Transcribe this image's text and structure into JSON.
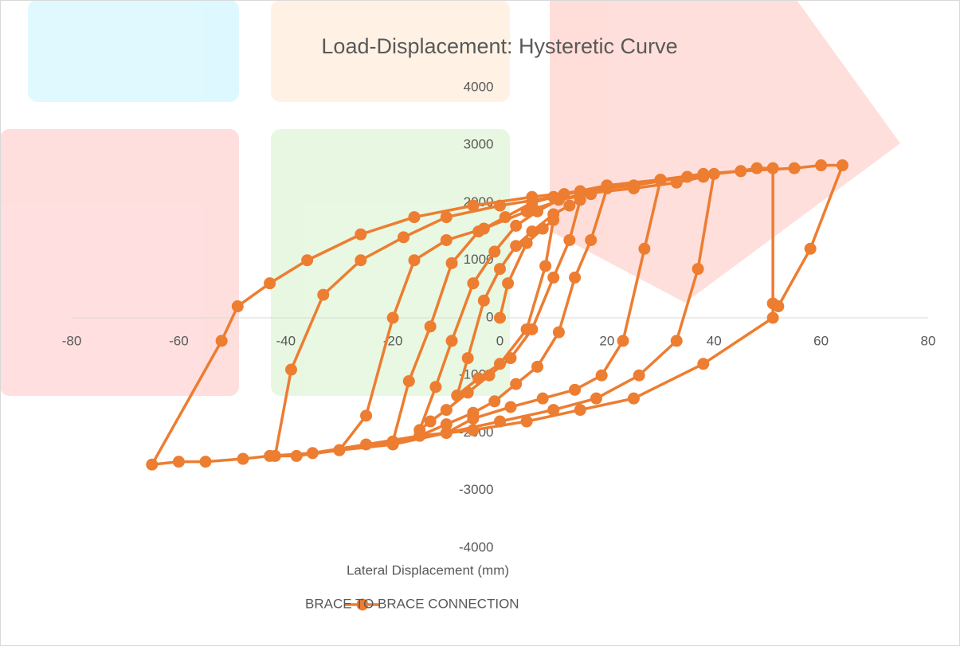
{
  "chart_data": {
    "type": "scatter-line",
    "title": "Load-Displacement: Hysteretic Curve",
    "x_label": "Lateral Displacement (mm)",
    "xlim": [
      -80,
      80
    ],
    "xticks": [
      -80,
      -60,
      -40,
      -20,
      0,
      20,
      40,
      60,
      80
    ],
    "ylim": [
      -4000,
      4000
    ],
    "yticks": [
      -4000,
      -3000,
      -2000,
      -1000,
      0,
      1000,
      2000,
      3000,
      4000
    ],
    "grid": false,
    "legend": "bottom",
    "x": [
      0,
      1.5,
      5,
      8,
      10,
      8.5,
      5,
      0,
      -4,
      -8,
      -6,
      -3,
      0,
      3,
      6,
      10,
      13,
      15,
      13,
      10,
      6,
      2,
      -2,
      -6,
      -10,
      -13,
      -15,
      -12,
      -9,
      -5,
      -1,
      3,
      7,
      11,
      17,
      20,
      17,
      14,
      11,
      7,
      3,
      -1,
      -5,
      -10,
      -15,
      -20,
      -17,
      -13,
      -9,
      -4,
      1,
      6,
      12,
      20,
      25,
      30,
      27,
      23,
      19,
      14,
      8,
      2,
      -5,
      -10,
      -20,
      -30,
      -25,
      -20,
      -16,
      -10,
      -3,
      5,
      15,
      25,
      33,
      38,
      40,
      37,
      33,
      26,
      18,
      10,
      0,
      -10,
      -20,
      -30,
      -38,
      -42,
      -39,
      -33,
      -26,
      -18,
      -10,
      0,
      10,
      20,
      30,
      38,
      45,
      48,
      51,
      51,
      51,
      38,
      25,
      15,
      5,
      -5,
      -15,
      -25,
      -35,
      -43,
      -48,
      -55,
      -60,
      -65,
      -52,
      -49,
      -43,
      -36,
      -26,
      -16,
      -5,
      6,
      15,
      25,
      35,
      45,
      55,
      60,
      64,
      58,
      52
    ],
    "series": [
      {
        "name": "BRACE TO BRACE CONNECTION",
        "color": "#ed7d31",
        "values": [
          0,
          600,
          1300,
          1550,
          1700,
          900,
          -200,
          -800,
          -1050,
          -1350,
          -700,
          300,
          850,
          1250,
          1500,
          1800,
          1950,
          2050,
          1350,
          700,
          -200,
          -700,
          -1000,
          -1300,
          -1600,
          -1800,
          -1950,
          -1200,
          -400,
          600,
          1150,
          1600,
          1850,
          2050,
          2150,
          2250,
          1350,
          700,
          -250,
          -850,
          -1150,
          -1450,
          -1650,
          -1850,
          -2050,
          -2150,
          -1100,
          -150,
          950,
          1500,
          1750,
          2000,
          2150,
          2300,
          2300,
          2400,
          1200,
          -400,
          -1000,
          -1250,
          -1400,
          -1550,
          -1750,
          -2000,
          -2200,
          -2300,
          -1700,
          0,
          1000,
          1350,
          1550,
          1850,
          2150,
          2250,
          2350,
          2450,
          2500,
          850,
          -400,
          -1000,
          -1400,
          -1600,
          -1800,
          -2000,
          -2150,
          -2300,
          -2400,
          -2400,
          -900,
          400,
          1000,
          1400,
          1750,
          1950,
          2100,
          2300,
          2400,
          2500,
          2550,
          2600,
          2600,
          250,
          0,
          -800,
          -1400,
          -1600,
          -1800,
          -1950,
          -2050,
          -2200,
          -2350,
          -2400,
          -2450,
          -2500,
          -2500,
          -2550,
          -400,
          200,
          600,
          1000,
          1450,
          1750,
          1950,
          2100,
          2200,
          2300,
          2450,
          2550,
          2600,
          2650,
          2650,
          1200,
          200
        ]
      }
    ]
  }
}
